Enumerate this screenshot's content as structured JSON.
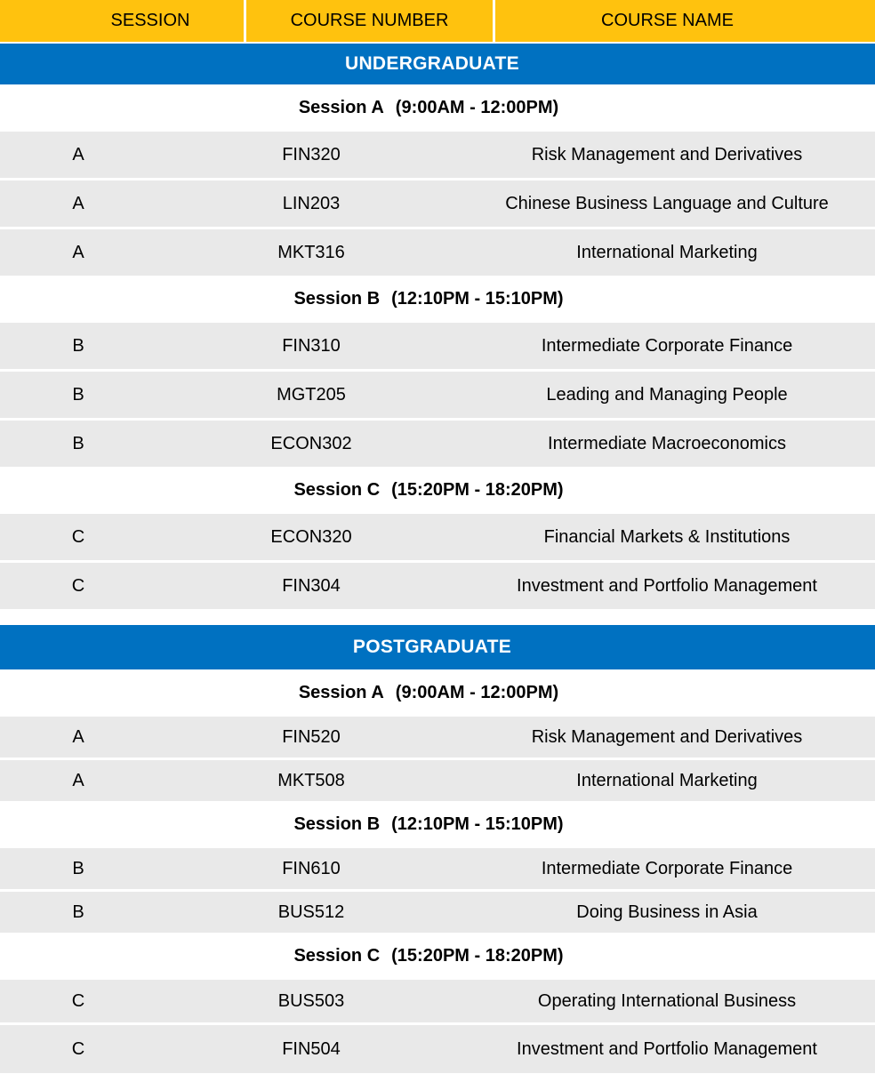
{
  "header": {
    "columns": [
      "SESSION",
      "COURSE NUMBER",
      "COURSE NAME"
    ]
  },
  "colors": {
    "header_bg": "#FFC20E",
    "band_bg": "#0071C1",
    "row_bg": "#E9E9E9",
    "header_text": "#000000",
    "band_text": "#FFFFFF"
  },
  "sections": [
    {
      "title": "UNDERGRADUATE",
      "sessions": [
        {
          "name": "Session A",
          "time": "(9:00AM - 12:00PM)",
          "rows": [
            {
              "session": "A",
              "course_number": "FIN320",
              "course_name": "Risk Management and Derivatives"
            },
            {
              "session": "A",
              "course_number": "LIN203",
              "course_name": "Chinese Business Language and Culture"
            },
            {
              "session": "A",
              "course_number": "MKT316",
              "course_name": "International Marketing"
            }
          ]
        },
        {
          "name": "Session B",
          "time": "(12:10PM - 15:10PM)",
          "rows": [
            {
              "session": "B",
              "course_number": "FIN310",
              "course_name": "Intermediate Corporate Finance"
            },
            {
              "session": "B",
              "course_number": "MGT205",
              "course_name": "Leading and Managing People"
            },
            {
              "session": "B",
              "course_number": "ECON302",
              "course_name": "Intermediate Macroeconomics"
            }
          ]
        },
        {
          "name": "Session C",
          "time": "(15:20PM - 18:20PM)",
          "rows": [
            {
              "session": "C",
              "course_number": "ECON320",
              "course_name": "Financial Markets & Institutions"
            },
            {
              "session": "C",
              "course_number": "FIN304",
              "course_name": "Investment and Portfolio Management"
            }
          ]
        }
      ]
    },
    {
      "title": "POSTGRADUATE",
      "sessions": [
        {
          "name": "Session A",
          "time": "(9:00AM - 12:00PM)",
          "rows": [
            {
              "session": "A",
              "course_number": "FIN520",
              "course_name": "Risk Management and Derivatives"
            },
            {
              "session": "A",
              "course_number": "MKT508",
              "course_name": "International Marketing"
            }
          ]
        },
        {
          "name": "Session B",
          "time": "(12:10PM - 15:10PM)",
          "rows": [
            {
              "session": "B",
              "course_number": "FIN610",
              "course_name": "Intermediate Corporate Finance"
            },
            {
              "session": "B",
              "course_number": "BUS512",
              "course_name": "Doing Business in Asia"
            }
          ]
        },
        {
          "name": "Session C",
          "time": "(15:20PM - 18:20PM)",
          "rows": [
            {
              "session": "C",
              "course_number": "BUS503",
              "course_name": "Operating International Business"
            },
            {
              "session": "C",
              "course_number": "FIN504",
              "course_name": "Investment and Portfolio Management"
            }
          ]
        }
      ]
    }
  ]
}
